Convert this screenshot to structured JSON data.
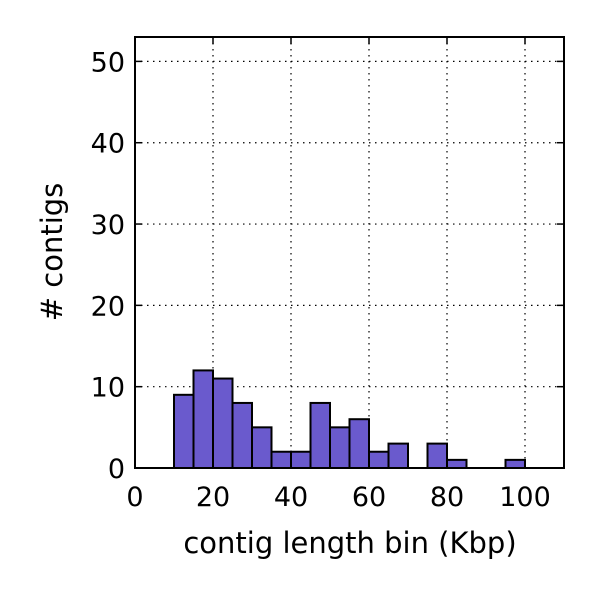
{
  "chart_data": {
    "type": "bar",
    "title": "",
    "xlabel": "contig length bin (Kbp)",
    "ylabel": "# contigs",
    "xlim": [
      0,
      110
    ],
    "ylim": [
      0,
      53
    ],
    "x_ticks": [
      0,
      20,
      40,
      60,
      80,
      100
    ],
    "y_ticks": [
      0,
      10,
      20,
      30,
      40,
      50
    ],
    "grid": true,
    "bin_width": 5,
    "bins": [
      {
        "start": 0,
        "end": 5,
        "count": 0
      },
      {
        "start": 5,
        "end": 10,
        "count": 0
      },
      {
        "start": 10,
        "end": 15,
        "count": 9
      },
      {
        "start": 15,
        "end": 20,
        "count": 12
      },
      {
        "start": 20,
        "end": 25,
        "count": 11
      },
      {
        "start": 25,
        "end": 30,
        "count": 8
      },
      {
        "start": 30,
        "end": 35,
        "count": 5
      },
      {
        "start": 35,
        "end": 40,
        "count": 2
      },
      {
        "start": 40,
        "end": 45,
        "count": 2
      },
      {
        "start": 45,
        "end": 50,
        "count": 8
      },
      {
        "start": 50,
        "end": 55,
        "count": 5
      },
      {
        "start": 55,
        "end": 60,
        "count": 6
      },
      {
        "start": 60,
        "end": 65,
        "count": 2
      },
      {
        "start": 65,
        "end": 70,
        "count": 3
      },
      {
        "start": 70,
        "end": 75,
        "count": 0
      },
      {
        "start": 75,
        "end": 80,
        "count": 3
      },
      {
        "start": 80,
        "end": 85,
        "count": 1
      },
      {
        "start": 85,
        "end": 90,
        "count": 0
      },
      {
        "start": 90,
        "end": 95,
        "count": 0
      },
      {
        "start": 95,
        "end": 100,
        "count": 1
      },
      {
        "start": 100,
        "end": 105,
        "count": 0
      },
      {
        "start": 105,
        "end": 110,
        "count": 0
      }
    ],
    "bar_color": "#6a5acd",
    "edge_color": "#000000"
  }
}
